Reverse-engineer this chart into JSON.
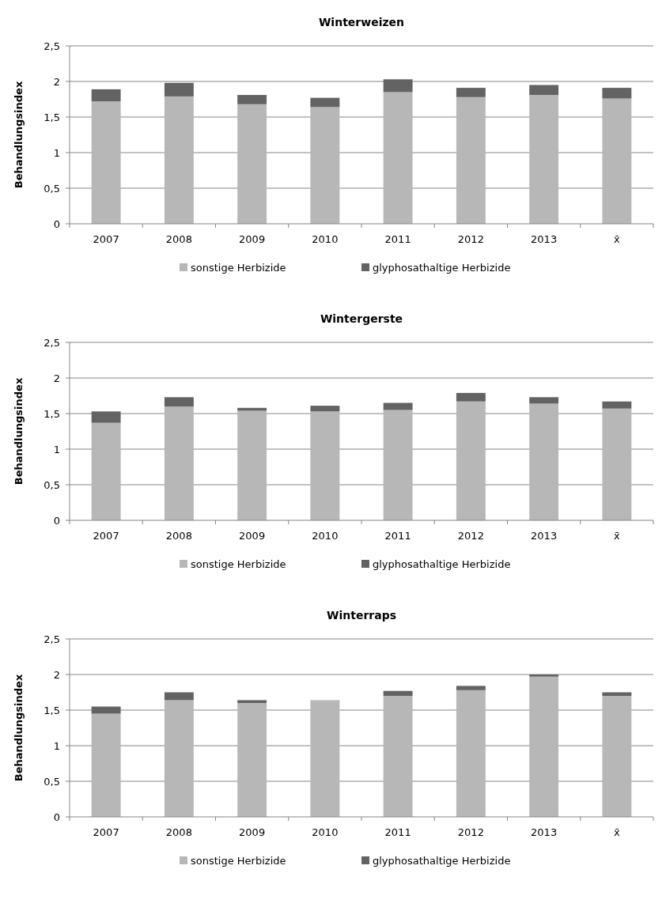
{
  "chart_data": [
    {
      "type": "bar",
      "title": "Winterweizen",
      "ylabel": "Behandlungsindex",
      "categories": [
        "2007",
        "2008",
        "2009",
        "2010",
        "2011",
        "2012",
        "2013",
        "x̄"
      ],
      "stacked": true,
      "ylim": [
        0,
        2.5
      ],
      "yticks": [
        0,
        {
          "value": 0.5,
          "label": "0,5"
        },
        1,
        {
          "value": 1.5,
          "label": "1,5"
        },
        2,
        {
          "value": 2.5,
          "label": "2,5"
        }
      ],
      "grid": "y",
      "legend": "bottom",
      "series": [
        {
          "name": "sonstige Herbizide",
          "color": "#b7b7b7",
          "values": [
            1.72,
            1.79,
            1.68,
            1.64,
            1.85,
            1.78,
            1.81,
            1.76
          ]
        },
        {
          "name": "glyphosathaltige Herbizide",
          "color": "#636363",
          "values": [
            0.17,
            0.19,
            0.13,
            0.13,
            0.18,
            0.13,
            0.14,
            0.15
          ]
        }
      ]
    },
    {
      "type": "bar",
      "title": "Wintergerste",
      "ylabel": "Behandlungsindex",
      "categories": [
        "2007",
        "2008",
        "2009",
        "2010",
        "2011",
        "2012",
        "2013",
        "x̄"
      ],
      "stacked": true,
      "ylim": [
        0,
        2.5
      ],
      "yticks": [
        0,
        {
          "value": 0.5,
          "label": "0,5"
        },
        1,
        {
          "value": 1.5,
          "label": "1,5"
        },
        2,
        {
          "value": 2.5,
          "label": "2,5"
        }
      ],
      "grid": "y",
      "legend": "bottom",
      "series": [
        {
          "name": "sonstige Herbizide",
          "color": "#b7b7b7",
          "values": [
            1.37,
            1.6,
            1.54,
            1.53,
            1.55,
            1.67,
            1.64,
            1.57
          ]
        },
        {
          "name": "glyphosathaltige Herbizide",
          "color": "#636363",
          "values": [
            0.16,
            0.13,
            0.04,
            0.08,
            0.1,
            0.12,
            0.09,
            0.1
          ]
        }
      ]
    },
    {
      "type": "bar",
      "title": "Winterraps",
      "ylabel": "Behandlungsindex",
      "categories": [
        "2007",
        "2008",
        "2009",
        "2010",
        "2011",
        "2012",
        "2013",
        "x̄"
      ],
      "stacked": true,
      "ylim": [
        0,
        2.5
      ],
      "yticks": [
        0,
        {
          "value": 0.5,
          "label": "0,5"
        },
        1,
        {
          "value": 1.5,
          "label": "1,5"
        },
        2,
        {
          "value": 2.5,
          "label": "2,5"
        }
      ],
      "grid": "y",
      "legend": "bottom",
      "series": [
        {
          "name": "sonstige Herbizide",
          "color": "#b7b7b7",
          "values": [
            1.45,
            1.64,
            1.6,
            1.64,
            1.7,
            1.78,
            1.97,
            1.7
          ]
        },
        {
          "name": "glyphosathaltige Herbizide",
          "color": "#636363",
          "values": [
            0.1,
            0.11,
            0.04,
            0,
            0.07,
            0.06,
            0.03,
            0.05
          ]
        }
      ]
    }
  ]
}
